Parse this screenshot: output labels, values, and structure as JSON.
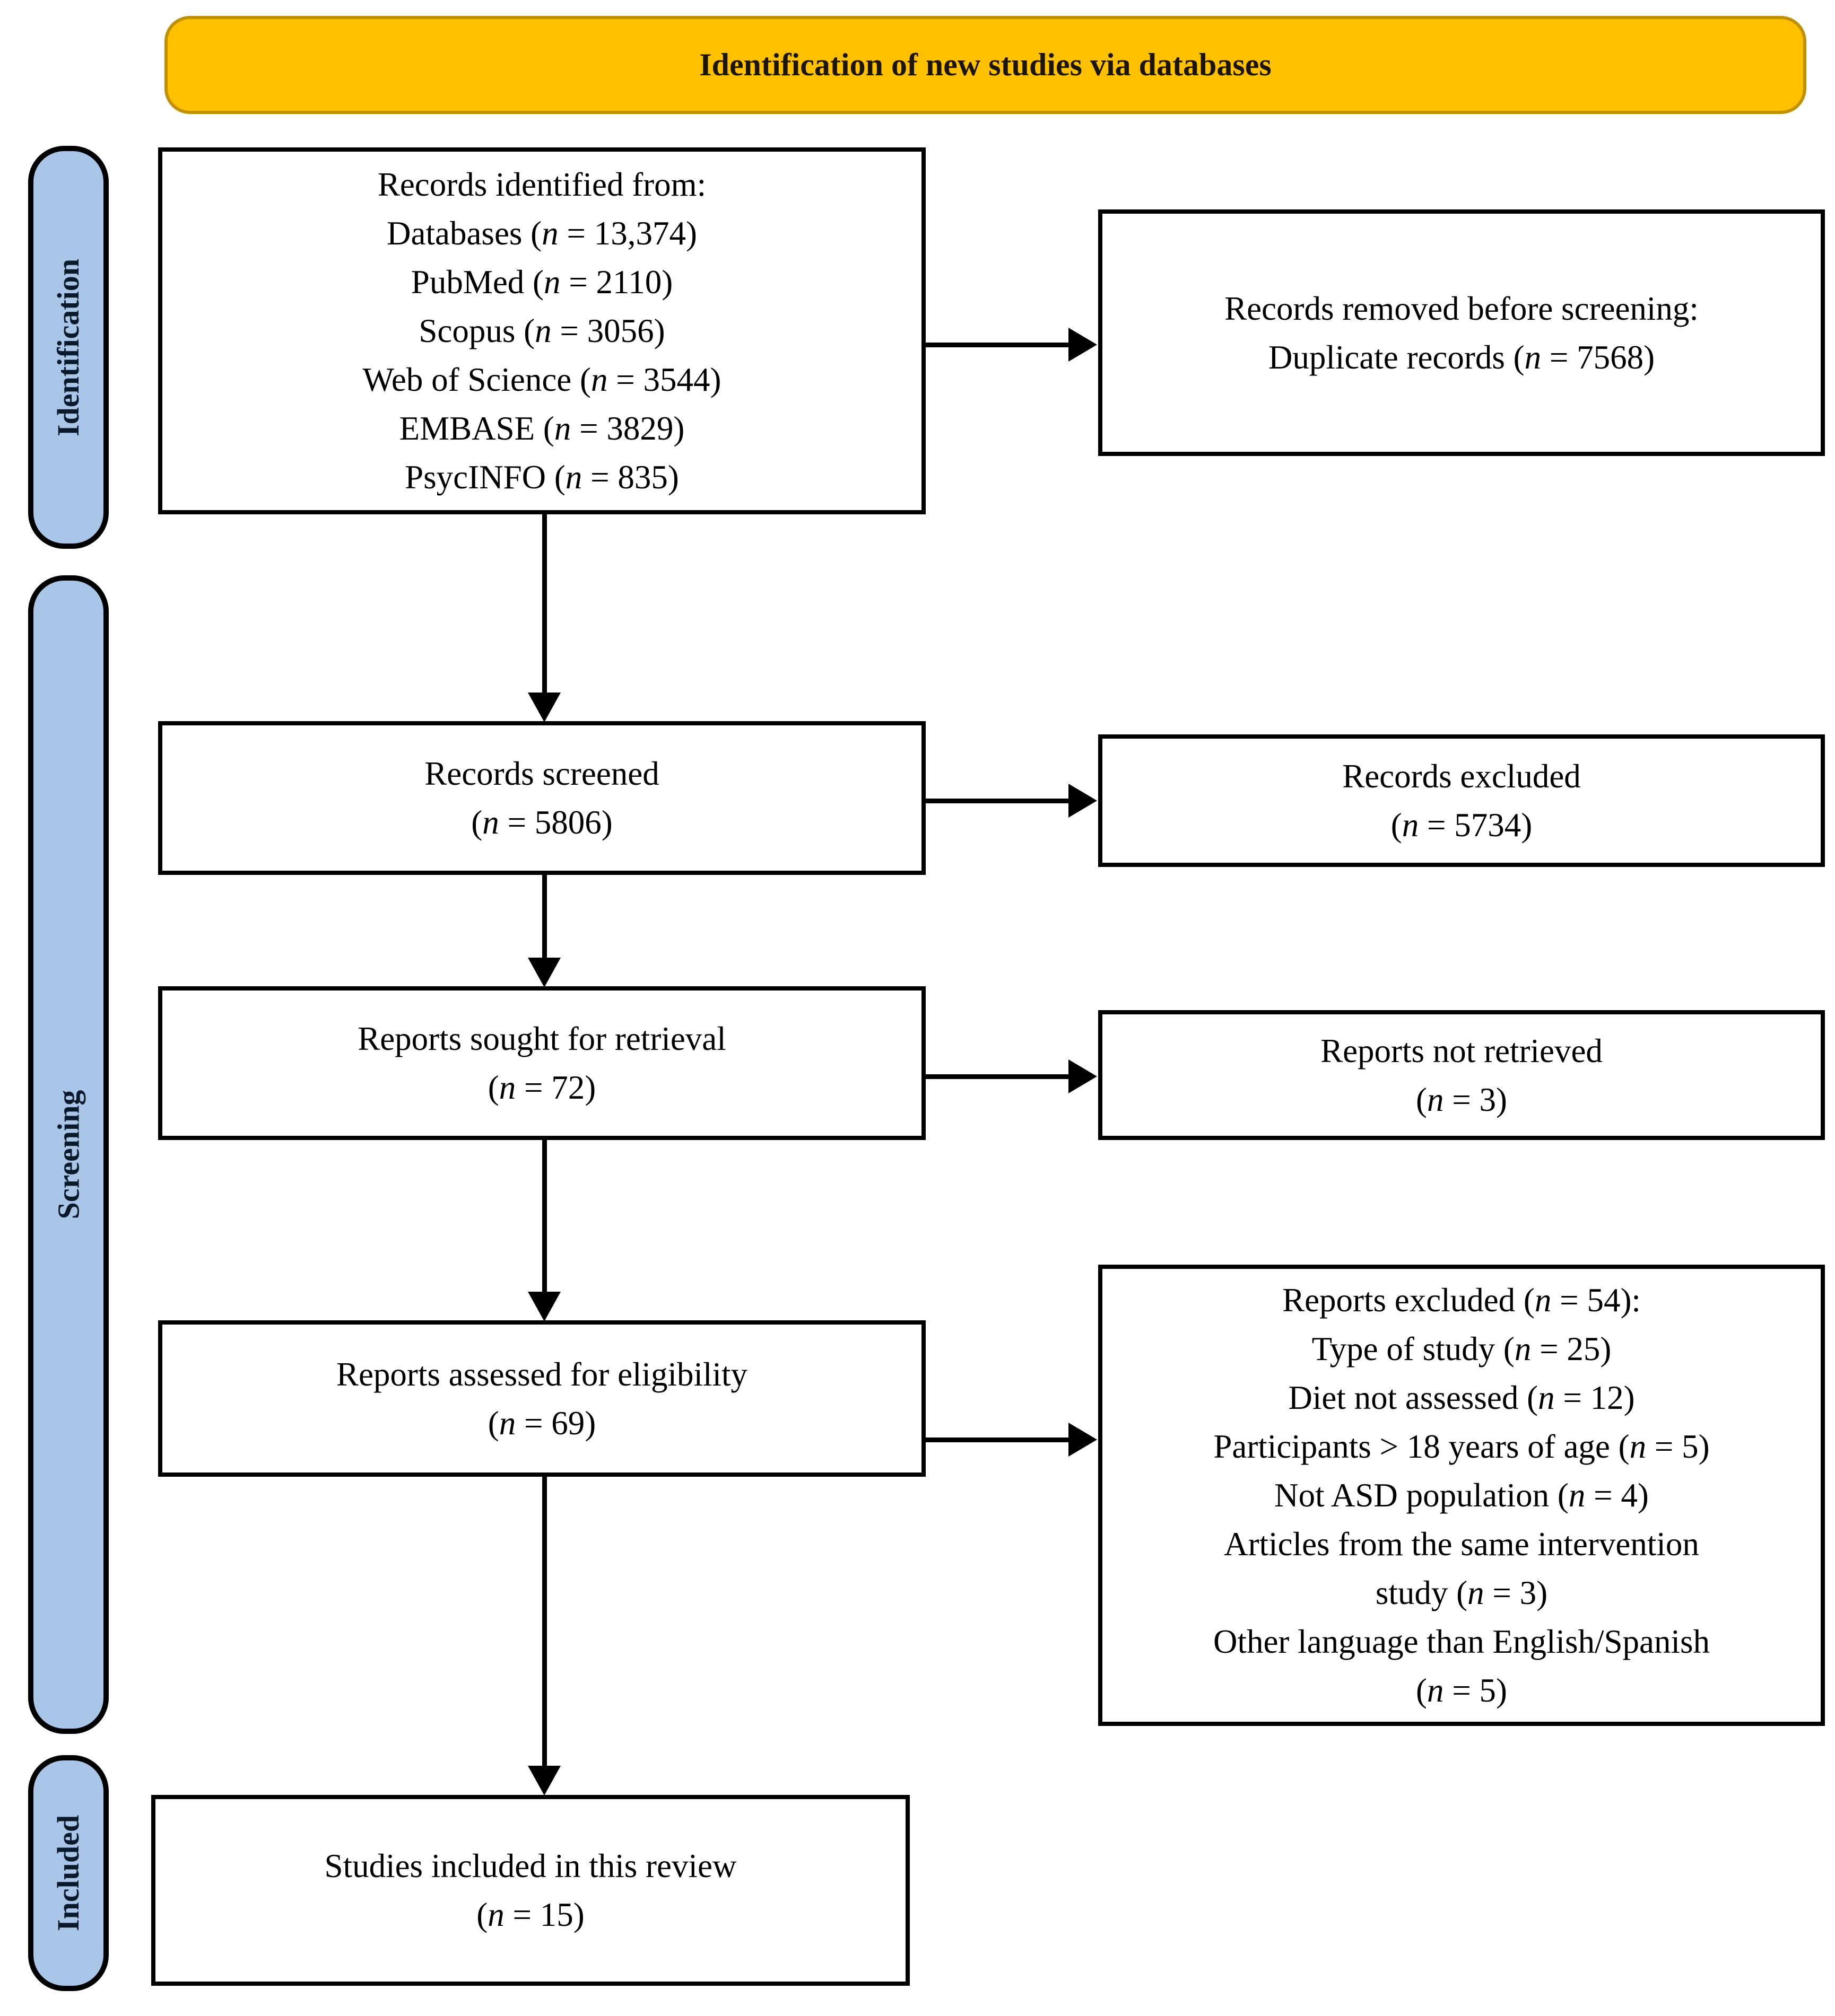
{
  "title": "Identification of new studies via databases",
  "colors": {
    "banner_bg": "#FFC000",
    "banner_border": "#BF9000",
    "stage_bg": "#A9C6E8",
    "box_border": "#000000",
    "background": "#FFFFFF"
  },
  "stages": [
    {
      "label": "Identification"
    },
    {
      "label": "Screening"
    },
    {
      "label": "Included"
    }
  ],
  "boxes": {
    "identified": {
      "lines": [
        "Records identified from:",
        "Databases (n = 13,374)",
        "PubMed (n = 2110)",
        "Scopus (n = 3056)",
        "Web of Science (n = 3544)",
        "EMBASE (n = 3829)",
        "PsycINFO (n = 835)"
      ]
    },
    "removed_before_screening": {
      "lines": [
        "Records removed before screening:",
        "Duplicate records (n = 7568)"
      ]
    },
    "screened": {
      "lines": [
        "Records screened",
        "(n = 5806)"
      ]
    },
    "records_excluded": {
      "lines": [
        "Records excluded",
        "(n = 5734)"
      ]
    },
    "sought_for_retrieval": {
      "lines": [
        "Reports sought for retrieval",
        "(n = 72)"
      ]
    },
    "not_retrieved": {
      "lines": [
        "Reports not retrieved",
        "(n = 3)"
      ]
    },
    "assessed_for_eligibility": {
      "lines": [
        "Reports assessed for eligibility",
        "(n = 69)"
      ]
    },
    "reports_excluded": {
      "lines": [
        "Reports excluded (n = 54):",
        "Type of study (n = 25)",
        "Diet not assessed (n = 12)",
        "Participants > 18 years of age (n = 5)",
        "Not ASD population (n = 4)",
        "Articles from the same intervention",
        "study (n = 3)",
        "Other language than English/Spanish",
        "(n = 5)"
      ]
    },
    "included_in_review": {
      "lines": [
        "Studies included in this review",
        "(n = 15)"
      ]
    }
  }
}
